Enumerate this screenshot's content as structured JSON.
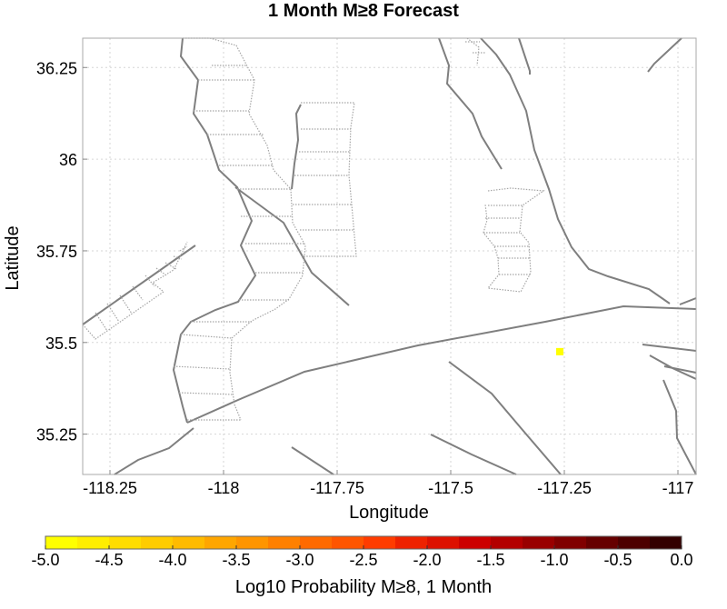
{
  "title": "1 Month M≥8 Forecast",
  "map": {
    "xlabel": "Longitude",
    "ylabel": "Latitude",
    "x_ticks": [
      "-118.25",
      "-118",
      "-117.75",
      "-117.5",
      "-117.25",
      "-117"
    ],
    "y_ticks": [
      "36.25",
      "36",
      "35.75",
      "35.5",
      "35.25"
    ],
    "x_tick_values": [
      -118.25,
      -118,
      -117.75,
      -117.5,
      -117.25,
      -117
    ],
    "y_tick_values": [
      36.25,
      36,
      35.75,
      35.5,
      35.25
    ],
    "xlim": [
      -118.31,
      -116.96
    ],
    "ylim": [
      35.14,
      36.33
    ],
    "grid": true,
    "features": {
      "line_color": "#7f7f7f",
      "dotted_color": "#a6a6a6",
      "forecast_cell": {
        "lon": -117.26,
        "lat": 35.475,
        "color": "#ffff00",
        "log10_probability": -5.0
      }
    }
  },
  "colorbar": {
    "label": "Log10 Probability M≥8, 1 Month",
    "ticks": [
      "-5.0",
      "-4.5",
      "-4.0",
      "-3.5",
      "-3.0",
      "-2.5",
      "-2.0",
      "-1.5",
      "-1.0",
      "-0.5",
      "0.0"
    ],
    "tick_values": [
      -5.0,
      -4.5,
      -4.0,
      -3.5,
      -3.0,
      -2.5,
      -2.0,
      -1.5,
      -1.0,
      -0.5,
      0.0
    ],
    "range": [
      -5.0,
      0.0
    ],
    "colors": [
      "#ffff00",
      "#ffee00",
      "#ffdd00",
      "#ffcc00",
      "#ffbb00",
      "#ffa600",
      "#ff9500",
      "#ff8000",
      "#ff6a00",
      "#ff5500",
      "#ff3c00",
      "#ee2200",
      "#dd1100",
      "#cc0000",
      "#b30000",
      "#990000",
      "#800000",
      "#660000",
      "#4d0000",
      "#330000"
    ]
  }
}
